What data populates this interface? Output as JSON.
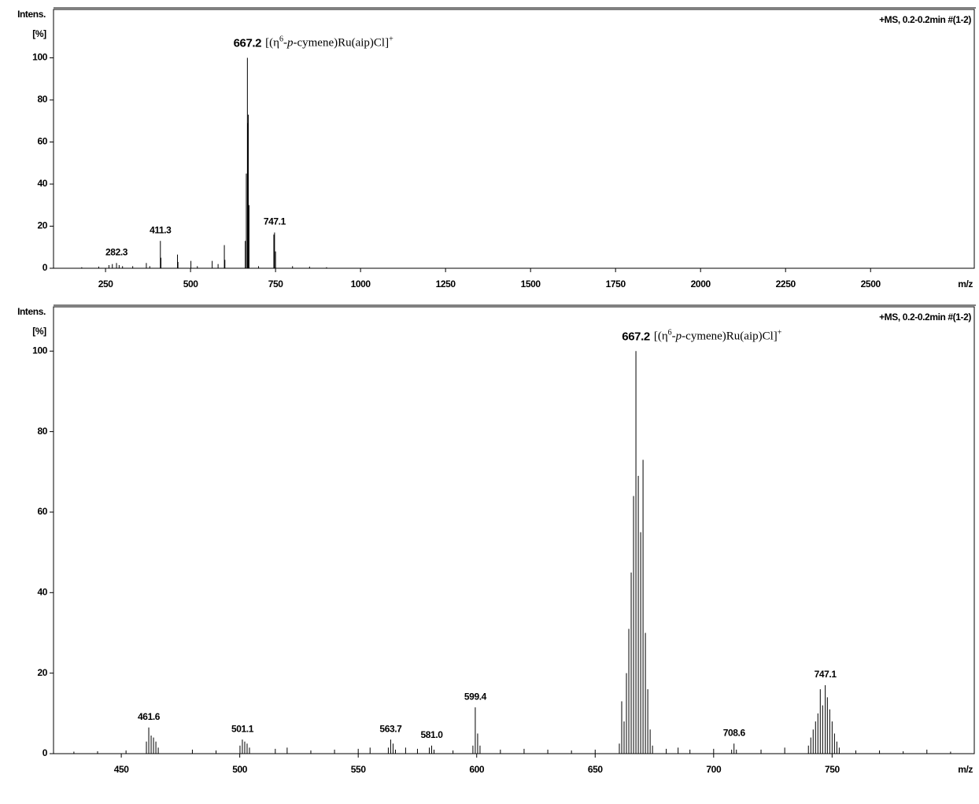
{
  "chart_data": [
    {
      "type": "stem",
      "y_label": "Intens.",
      "y_unit": "[%]",
      "x_label": "m/z",
      "info": "+MS, 0.2-0.2min #(1-2)",
      "color": "#000000",
      "xlim": [
        97,
        2805
      ],
      "ylim": [
        0,
        123
      ],
      "xticks": [
        250,
        500,
        750,
        1000,
        1250,
        1500,
        1750,
        2000,
        2250,
        2500
      ],
      "yticks": [
        0,
        20,
        40,
        60,
        80,
        100
      ],
      "x": [
        180,
        230,
        260,
        270,
        282.3,
        290,
        300,
        330,
        370,
        380,
        411.3,
        413,
        461.6,
        463,
        501.1,
        520,
        563.7,
        581,
        599.4,
        601,
        661,
        664,
        667.2,
        668,
        670,
        672,
        700,
        745,
        747.1,
        750,
        800,
        850,
        900
      ],
      "values": [
        0.5,
        0.8,
        1.5,
        2,
        2.5,
        1.5,
        1,
        1,
        2.5,
        1,
        13,
        5,
        6.5,
        3,
        3.5,
        1,
        3.5,
        2,
        11,
        4,
        13,
        45,
        100,
        69,
        73,
        30,
        1,
        16,
        17,
        8,
        1,
        0.8,
        0.5
      ],
      "annotations": [
        {
          "text": "282.3",
          "x": 282.3,
          "y": 2.5
        },
        {
          "text": "411.3",
          "x": 411.3,
          "y": 13
        },
        {
          "text": "747.1",
          "x": 747.1,
          "y": 17
        }
      ],
      "main_annotation": {
        "text": "667.2",
        "x": 667.2,
        "y": 100,
        "formula": [
          {
            "text": "[(η"
          },
          {
            "text": "6",
            "sup": true
          },
          {
            "text": "-"
          },
          {
            "text": "p",
            "italic": true
          },
          {
            "text": "-cymene)Ru(aip)Cl]"
          },
          {
            "text": "+",
            "sup": true
          }
        ]
      }
    },
    {
      "type": "stem",
      "y_label": "Intens.",
      "y_unit": "[%]",
      "x_label": "m/z",
      "info": "+MS, 0.2-0.2min #(1-2)",
      "color": "#000000",
      "xlim": [
        421.4,
        810
      ],
      "ylim": [
        0,
        111
      ],
      "xticks": [
        450,
        500,
        550,
        600,
        650,
        700,
        750
      ],
      "yticks": [
        0,
        20,
        40,
        60,
        80,
        100
      ],
      "x": [
        430,
        440,
        452,
        460.6,
        461.6,
        462.6,
        463.6,
        464.6,
        465.6,
        480,
        490,
        500.1,
        501.1,
        502.1,
        503.1,
        504.1,
        515,
        520,
        530,
        540,
        550,
        555,
        562.7,
        563.7,
        564.7,
        565.7,
        570,
        575,
        580,
        581,
        582,
        590,
        598.4,
        599.4,
        600.4,
        601.4,
        610,
        620,
        630,
        640,
        650,
        660.2,
        661.2,
        662.2,
        663.2,
        664.2,
        665.2,
        666.2,
        667.2,
        668.2,
        669.2,
        670.2,
        671.2,
        672.2,
        673.2,
        674.2,
        680,
        685,
        690,
        700,
        707.6,
        708.6,
        709.6,
        720,
        730,
        740,
        741,
        742,
        743,
        744,
        745,
        746,
        747.1,
        748,
        749,
        750,
        751,
        752,
        753,
        760,
        770,
        780,
        790,
        800
      ],
      "values": [
        0.5,
        0.6,
        0.8,
        3,
        6.5,
        4.5,
        4,
        3,
        1.5,
        1,
        0.8,
        2,
        3.5,
        3,
        2.5,
        1.5,
        1.2,
        1.5,
        0.8,
        1,
        1.2,
        1.5,
        1.5,
        3.5,
        2.5,
        1,
        1.5,
        1.2,
        1.5,
        2,
        1,
        0.8,
        2,
        11.5,
        5,
        2,
        1,
        1.2,
        1,
        0.8,
        1,
        2.5,
        13,
        8,
        20,
        31,
        45,
        64,
        100,
        69,
        55,
        73,
        30,
        16,
        6,
        2,
        1.2,
        1.5,
        1,
        1.2,
        1,
        2.5,
        1,
        1,
        1.5,
        2,
        4,
        6,
        8,
        10,
        16,
        12,
        17,
        14,
        11,
        8,
        5,
        3,
        1.5,
        0.8,
        0.8,
        0.6,
        1,
        0.5
      ],
      "annotations": [
        {
          "text": "461.6",
          "x": 461.6,
          "y": 6.5
        },
        {
          "text": "501.1",
          "x": 501.1,
          "y": 3.5
        },
        {
          "text": "563.7",
          "x": 563.7,
          "y": 3.5
        },
        {
          "text": "581.0",
          "x": 581,
          "y": 2
        },
        {
          "text": "599.4",
          "x": 599.4,
          "y": 11.5
        },
        {
          "text": "708.6",
          "x": 708.6,
          "y": 2.5
        },
        {
          "text": "747.1",
          "x": 747.1,
          "y": 17
        }
      ],
      "main_annotation": {
        "text": "667.2",
        "x": 667.2,
        "y": 100,
        "formula": [
          {
            "text": "[(η"
          },
          {
            "text": "6",
            "sup": true
          },
          {
            "text": "-"
          },
          {
            "text": "p",
            "italic": true
          },
          {
            "text": "-cymene)Ru(aip)Cl]"
          },
          {
            "text": "+",
            "sup": true
          }
        ]
      }
    }
  ]
}
